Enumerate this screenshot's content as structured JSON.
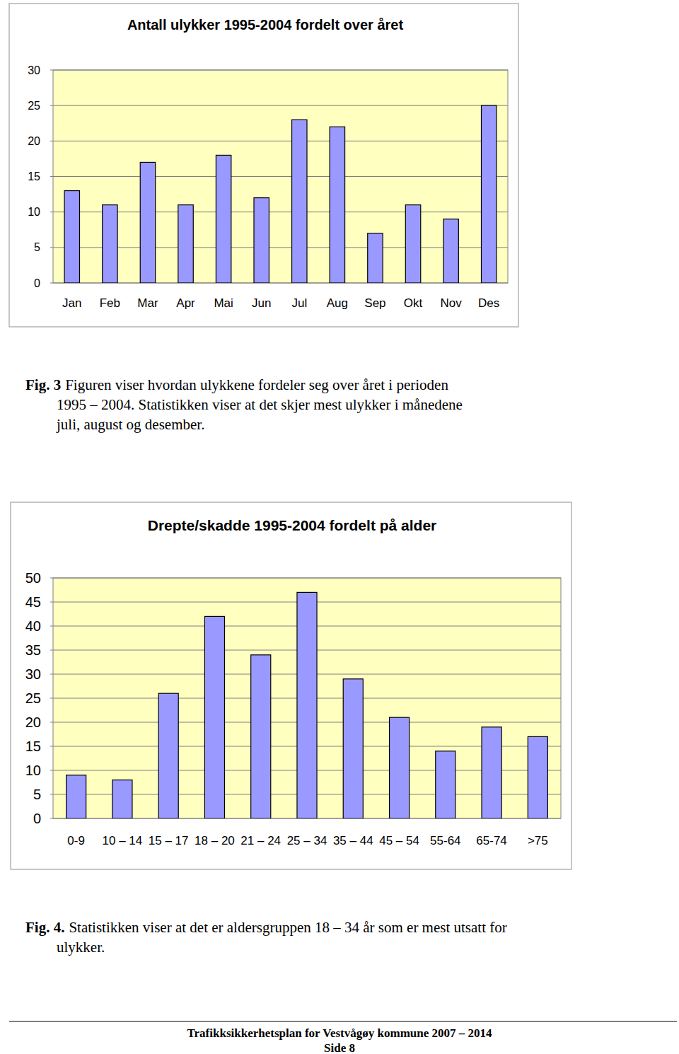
{
  "chart_data": [
    {
      "type": "bar",
      "title": "Antall ulykker 1995-2004 fordelt over året",
      "categories": [
        "Jan",
        "Feb",
        "Mar",
        "Apr",
        "Mai",
        "Jun",
        "Jul",
        "Aug",
        "Sep",
        "Okt",
        "Nov",
        "Des"
      ],
      "values": [
        13,
        11,
        17,
        11,
        18,
        12,
        23,
        22,
        7,
        11,
        9,
        25
      ],
      "color": "#9999ff",
      "ylim": [
        0,
        30
      ],
      "yticks": [
        0,
        5,
        10,
        15,
        20,
        25,
        30
      ],
      "grid": true
    },
    {
      "type": "bar",
      "title": "Drepte/skadde 1995-2004 fordelt på alder",
      "categories": [
        "0-9",
        "10 – 14",
        "15 – 17",
        "18 – 20",
        "21 – 24",
        "25 – 34",
        "35 – 44",
        "45 – 54",
        "55-64",
        "65-74",
        ">75"
      ],
      "values": [
        9,
        8,
        26,
        42,
        34,
        47,
        29,
        21,
        14,
        19,
        17
      ],
      "color": "#9999ff",
      "ylim": [
        0,
        50
      ],
      "yticks": [
        0,
        5,
        10,
        15,
        20,
        25,
        30,
        35,
        40,
        45,
        50
      ],
      "grid": true
    }
  ],
  "captions": [
    {
      "label": "Fig. 3",
      "lines": [
        "Figuren viser hvordan ulykkene fordeler seg over året i perioden",
        "1995 – 2004. Statistikken viser at det skjer mest ulykker i månedene",
        "juli, august og desember."
      ]
    },
    {
      "label": "Fig. 4.",
      "lines": [
        "Statistikken viser at det er aldersgruppen 18 – 34 år som er mest utsatt for",
        "ulykker."
      ]
    }
  ],
  "footer": {
    "title": "Trafikksikkerhetsplan for Vestvågøy kommune 2007 – 2014",
    "page": "Side 8"
  }
}
